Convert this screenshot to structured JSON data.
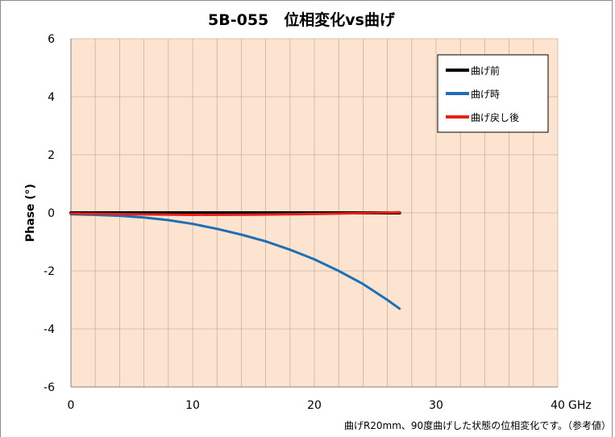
{
  "chart_data": {
    "type": "line",
    "title": "5B-055　位相変化vs曲げ",
    "xlabel": "GHz",
    "ylabel": "Phase (°)",
    "xlim": [
      0,
      40
    ],
    "ylim": [
      -6,
      6
    ],
    "x_ticks": [
      "0",
      "10",
      "20",
      "30",
      "40"
    ],
    "y_ticks": [
      "6",
      "4",
      "2",
      "0",
      "-2",
      "-4",
      "-6"
    ],
    "x_minor_step": 2,
    "y_major_step": 2,
    "grid": true,
    "legend_position": "top-right",
    "plot_background": "#FCE4D0",
    "grid_color": "#C7B29F",
    "series": [
      {
        "name": "曲げ前",
        "color": "#000000",
        "x": [
          0,
          5,
          10,
          15,
          20,
          25,
          27
        ],
        "y": [
          0.0,
          0.0,
          0.0,
          0.0,
          0.0,
          0.0,
          0.0
        ]
      },
      {
        "name": "曲げ時",
        "color": "#1F6FB5",
        "x": [
          0,
          2,
          4,
          6,
          8,
          10,
          12,
          14,
          16,
          18,
          20,
          22,
          24,
          26,
          27
        ],
        "y": [
          -0.05,
          -0.07,
          -0.1,
          -0.16,
          -0.25,
          -0.38,
          -0.55,
          -0.75,
          -0.98,
          -1.27,
          -1.6,
          -2.0,
          -2.45,
          -3.0,
          -3.3
        ]
      },
      {
        "name": "曲げ戻し後",
        "color": "#E8201C",
        "x": [
          0,
          5,
          10,
          15,
          20,
          25,
          27
        ],
        "y": [
          -0.02,
          -0.05,
          -0.07,
          -0.06,
          -0.04,
          0.0,
          0.02
        ]
      }
    ],
    "note": "曲げR20mm、90度曲げした状態の位相変化です。（参考値）"
  }
}
